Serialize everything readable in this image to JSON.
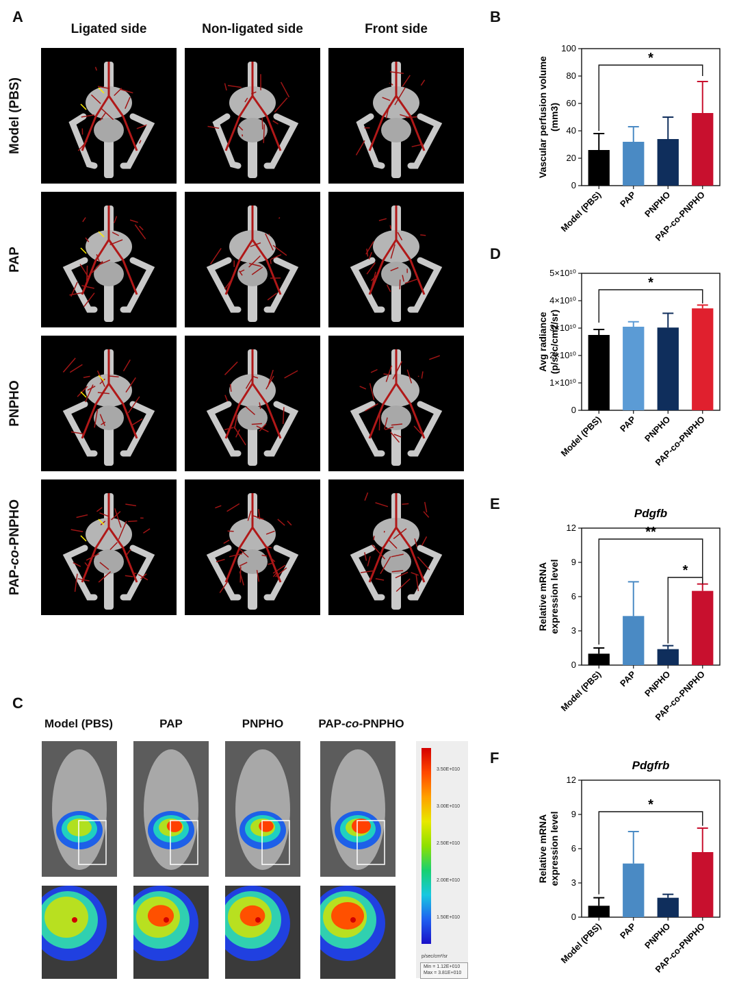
{
  "panels": {
    "A": "A",
    "B": "B",
    "C": "C",
    "D": "D",
    "E": "E",
    "F": "F"
  },
  "panelA": {
    "columns": [
      "Ligated side",
      "Non-ligated side",
      "Front side"
    ],
    "rows": [
      "Model (PBS)",
      "PAP",
      "PNPHO",
      "PAP-co-PNPHO"
    ]
  },
  "panelC": {
    "groups": [
      "Model (PBS)",
      "PAP",
      "PNPHO",
      "PAP-co-PNPHO"
    ],
    "colorbar": {
      "ticks": [
        "3.50E+010",
        "3.00E+010",
        "2.50E+010",
        "2.00E+010",
        "1.50E+010"
      ],
      "unit": "p/sec/cm²/sr",
      "min_label": "Min = 1.12E+010",
      "max_label": "Max = 3.81E+010"
    }
  },
  "colors": {
    "model": "#000000",
    "pap": "#4a8ac4",
    "pnpho": "#0f2e5c",
    "combo": "#c8102e",
    "pap_light": "#5b9bd5",
    "combo_D": "#e0202e"
  },
  "chart_data": [
    {
      "panel": "B",
      "type": "bar",
      "categories": [
        "Model (PBS)",
        "PAP",
        "PNPHO",
        "PAP-co-PNPHO"
      ],
      "values": [
        26,
        32,
        34,
        53
      ],
      "errors": [
        12,
        11,
        16,
        23
      ],
      "ylabel_line1": "Vascular perfusion volume",
      "ylabel_line2": "(mm3)",
      "ylim": [
        0,
        100
      ],
      "yticks": [
        "0",
        "20",
        "40",
        "60",
        "80",
        "100"
      ],
      "significance": [
        {
          "from": 0,
          "to": 3,
          "label": "*"
        }
      ]
    },
    {
      "panel": "D",
      "type": "bar",
      "categories": [
        "Model (PBS)",
        "PAP",
        "PNPHO",
        "PAP-co-PNPHO"
      ],
      "values": [
        27500000000.0,
        30500000000.0,
        30200000000.0,
        37200000000.0
      ],
      "errors": [
        2000000000.0,
        1800000000.0,
        5200000000.0,
        1200000000.0
      ],
      "ylabel_line1": "Avg radiance",
      "ylabel_line2": "(p/sec/cm2/sr)",
      "ylim": [
        0,
        50000000000.0
      ],
      "yticks": [
        "0",
        "1×10¹⁰",
        "2×10¹⁰",
        "3×10¹⁰",
        "4×10¹⁰",
        "5×10¹⁰"
      ],
      "significance": [
        {
          "from": 0,
          "to": 3,
          "label": "*"
        }
      ]
    },
    {
      "panel": "E",
      "type": "bar",
      "title": "Pdgfb",
      "categories": [
        "Model (PBS)",
        "PAP",
        "PNPHO",
        "PAP-co-PNPHO"
      ],
      "values": [
        1.0,
        4.3,
        1.4,
        6.5
      ],
      "errors": [
        0.5,
        3.0,
        0.3,
        0.6
      ],
      "ylabel_line1": "Relative mRNA",
      "ylabel_line2": "expression level",
      "ylim": [
        0,
        12
      ],
      "yticks": [
        "0",
        "3",
        "6",
        "9",
        "12"
      ],
      "significance": [
        {
          "from": 0,
          "to": 3,
          "label": "**"
        },
        {
          "from": 2,
          "to": 3,
          "label": "*"
        }
      ]
    },
    {
      "panel": "F",
      "type": "bar",
      "title": "Pdgfrb",
      "categories": [
        "Model (PBS)",
        "PAP",
        "PNPHO",
        "PAP-co-PNPHO"
      ],
      "values": [
        1.0,
        4.7,
        1.7,
        5.7
      ],
      "errors": [
        0.7,
        2.8,
        0.3,
        2.1
      ],
      "ylabel_line1": "Relative mRNA",
      "ylabel_line2": "expression level",
      "ylim": [
        0,
        12
      ],
      "yticks": [
        "0",
        "3",
        "6",
        "9",
        "12"
      ],
      "significance": [
        {
          "from": 0,
          "to": 3,
          "label": "*"
        }
      ]
    }
  ]
}
